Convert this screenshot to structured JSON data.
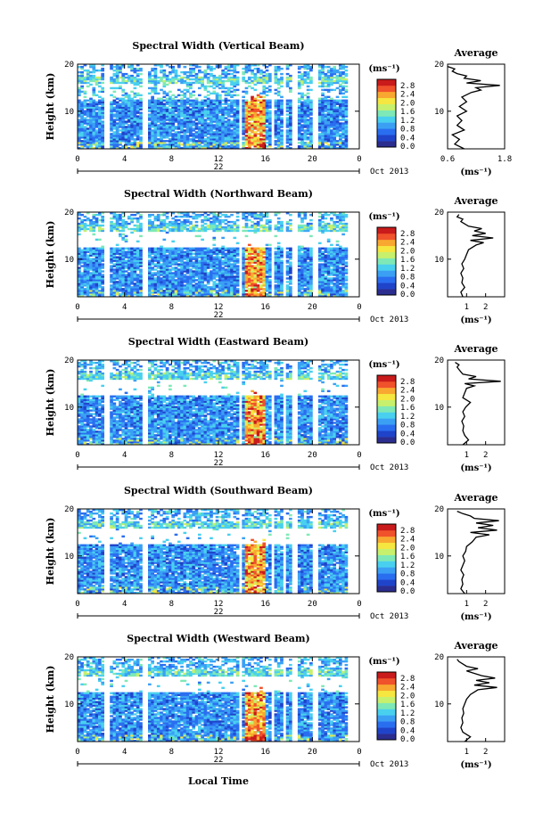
{
  "figure": {
    "colorbar_unit": "(ms⁻¹)",
    "colorbar_ticks": [
      "2.8",
      "2.4",
      "2.0",
      "1.6",
      "1.2",
      "0.8",
      "0.4",
      "0.0"
    ],
    "avg_title": "Average",
    "ylabel": "Height (km)",
    "x_ticks": [
      "0",
      "4",
      "8",
      "12",
      "16",
      "20",
      "0"
    ],
    "date_day": "22",
    "date_month_year": "Oct 2013",
    "xlabel": "Local Time",
    "colormap": [
      "#2b2d8f",
      "#1f44c9",
      "#2a6ef0",
      "#3ba0f4",
      "#49d0ef",
      "#7ee9b6",
      "#c7f06d",
      "#f6e640",
      "#f8a830",
      "#f0522b",
      "#c91b1b"
    ]
  },
  "chart_data": [
    {
      "type": "heatmap",
      "title": "Spectral Width (Vertical Beam)",
      "x_range": [
        0,
        24
      ],
      "y_range": [
        2,
        20
      ],
      "y_ticks": [
        "20",
        "10"
      ],
      "color_range": [
        0.0,
        2.8
      ],
      "avg_profile": {
        "xlim": [
          0.6,
          1.8
        ],
        "x_ticks": [
          "0.6",
          "1.8"
        ],
        "unit": "(ms⁻¹)",
        "height": [
          2,
          3,
          4,
          5,
          6,
          7,
          8,
          9,
          10,
          11,
          12,
          13,
          14,
          14.5,
          15,
          15.5,
          16,
          16.5,
          17,
          17.5,
          18,
          18.5,
          19,
          19.5
        ],
        "value": [
          0.95,
          0.75,
          0.85,
          0.7,
          0.95,
          0.8,
          0.9,
          0.8,
          1.0,
          0.85,
          1.0,
          0.9,
          1.1,
          1.3,
          1.2,
          1.7,
          1.0,
          1.3,
          0.95,
          1.0,
          0.8,
          0.7,
          0.75,
          0.6
        ]
      }
    },
    {
      "type": "heatmap",
      "title": "Spectral Width (Northward Beam)",
      "x_range": [
        0,
        24
      ],
      "y_range": [
        2,
        20
      ],
      "y_ticks": [
        "20",
        "10"
      ],
      "color_range": [
        0.0,
        2.8
      ],
      "avg_profile": {
        "xlim": [
          0,
          3
        ],
        "x_ticks": [
          "1",
          "2"
        ],
        "unit": "(ms⁻¹)",
        "height": [
          2,
          3,
          4,
          5,
          6,
          7,
          8,
          9,
          10,
          11,
          12,
          13,
          13.5,
          14,
          14.5,
          15,
          15.5,
          16,
          16.5,
          17,
          17.5,
          18,
          18.5,
          19,
          19.5
        ],
        "value": [
          0.8,
          0.7,
          0.9,
          0.75,
          0.8,
          0.7,
          0.85,
          0.75,
          0.9,
          1.0,
          1.1,
          1.5,
          1.9,
          1.2,
          2.4,
          1.3,
          2.0,
          1.4,
          1.8,
          1.1,
          0.9,
          0.7,
          0.8,
          0.5,
          0.6
        ]
      }
    },
    {
      "type": "heatmap",
      "title": "Spectral Width (Eastward Beam)",
      "x_range": [
        0,
        24
      ],
      "y_range": [
        2,
        20
      ],
      "y_ticks": [
        "20",
        "10"
      ],
      "color_range": [
        0.0,
        2.8
      ],
      "avg_profile": {
        "xlim": [
          0,
          3
        ],
        "x_ticks": [
          "1",
          "2"
        ],
        "unit": "(ms⁻¹)",
        "height": [
          2,
          3,
          4,
          5,
          6,
          7,
          8,
          9,
          10,
          11,
          12,
          13,
          14,
          14.5,
          15,
          15.5,
          16,
          16.5,
          17,
          17.5,
          18,
          18.5,
          19,
          19.5
        ],
        "value": [
          0.8,
          1.1,
          0.9,
          0.8,
          0.85,
          0.75,
          0.9,
          0.8,
          0.95,
          1.2,
          0.8,
          0.9,
          1.0,
          1.4,
          0.9,
          2.8,
          1.1,
          1.5,
          0.8,
          0.7,
          0.6,
          0.5,
          0.6,
          0.4
        ]
      }
    },
    {
      "type": "heatmap",
      "title": "Spectral Width (Southward Beam)",
      "x_range": [
        0,
        24
      ],
      "y_range": [
        2,
        20
      ],
      "y_ticks": [
        "20",
        "10"
      ],
      "color_range": [
        0.0,
        2.8
      ],
      "avg_profile": {
        "xlim": [
          0,
          3
        ],
        "x_ticks": [
          "1",
          "2"
        ],
        "unit": "(ms⁻¹)",
        "height": [
          2,
          3,
          4,
          5,
          6,
          7,
          8,
          9,
          10,
          11,
          12,
          13,
          14,
          14.5,
          15,
          15.5,
          16,
          16.5,
          17,
          17.5,
          18,
          18.5,
          19,
          19.5
        ],
        "value": [
          0.9,
          0.7,
          0.8,
          0.75,
          0.85,
          0.7,
          0.8,
          0.9,
          0.8,
          0.95,
          1.0,
          1.3,
          1.5,
          2.2,
          1.2,
          2.6,
          1.6,
          2.4,
          1.5,
          2.7,
          1.4,
          1.2,
          0.8,
          0.5
        ]
      }
    },
    {
      "type": "heatmap",
      "title": "Spectral Width (Westward Beam)",
      "x_range": [
        0,
        24
      ],
      "y_range": [
        2,
        20
      ],
      "y_ticks": [
        "20",
        "10"
      ],
      "color_range": [
        0.0,
        2.8
      ],
      "avg_profile": {
        "xlim": [
          0,
          3
        ],
        "x_ticks": [
          "1",
          "2"
        ],
        "unit": "(ms⁻¹)",
        "height": [
          2,
          3,
          4,
          5,
          6,
          7,
          8,
          9,
          10,
          11,
          12,
          13,
          13.5,
          14,
          14.5,
          15,
          15.5,
          16,
          16.5,
          17,
          17.5,
          18,
          18.5,
          19,
          19.5
        ],
        "value": [
          0.9,
          1.2,
          0.8,
          0.7,
          0.8,
          0.75,
          0.85,
          0.8,
          0.9,
          1.0,
          1.2,
          1.6,
          2.6,
          1.4,
          2.2,
          1.5,
          2.5,
          1.8,
          1.4,
          1.0,
          1.6,
          1.0,
          0.8,
          0.6,
          0.5
        ]
      }
    }
  ]
}
